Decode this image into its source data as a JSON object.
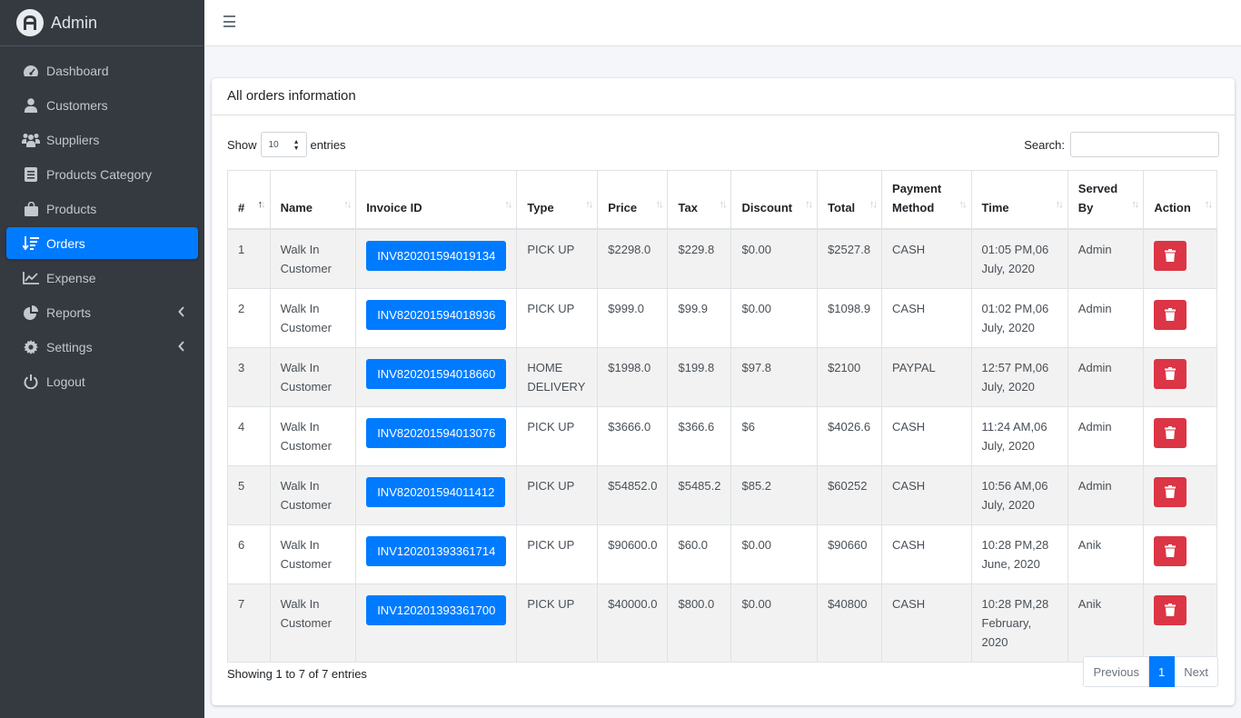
{
  "brand": {
    "name": "Admin",
    "logo_icon": "app-logo-icon"
  },
  "sidebar": {
    "items": [
      {
        "label": "Dashboard",
        "icon": "tachometer-icon"
      },
      {
        "label": "Customers",
        "icon": "user-icon"
      },
      {
        "label": "Suppliers",
        "icon": "people-icon"
      },
      {
        "label": "Products Category",
        "icon": "list-box-icon"
      },
      {
        "label": "Products",
        "icon": "shopping-bag-icon"
      },
      {
        "label": "Orders",
        "icon": "sort-list-icon",
        "active": true
      },
      {
        "label": "Expense",
        "icon": "line-chart-icon"
      },
      {
        "label": "Reports",
        "icon": "pie-chart-icon",
        "has_submenu": true
      },
      {
        "label": "Settings",
        "icon": "gear-icon",
        "has_submenu": true
      },
      {
        "label": "Logout",
        "icon": "power-icon"
      }
    ]
  },
  "card": {
    "title": "All orders information"
  },
  "controls": {
    "show_label": "Show",
    "entries_value": "10",
    "entries_label": "entries",
    "search_label": "Search:",
    "search_value": ""
  },
  "table": {
    "headers": [
      "#",
      "Name",
      "Invoice ID",
      "Type",
      "Price",
      "Tax",
      "Discount",
      "Total",
      "Payment Method",
      "Time",
      "Served By",
      "Action"
    ],
    "rows": [
      {
        "num": "1",
        "name": "Walk In Customer",
        "invoice": "INV820201594019134",
        "type": "PICK UP",
        "price": "$2298.0",
        "tax": "$229.8",
        "discount": "$0.00",
        "total": "$2527.8",
        "payment": "CASH",
        "time": "01:05 PM,06 July, 2020",
        "served": "Admin"
      },
      {
        "num": "2",
        "name": "Walk In Customer",
        "invoice": "INV820201594018936",
        "type": "PICK UP",
        "price": "$999.0",
        "tax": "$99.9",
        "discount": "$0.00",
        "total": "$1098.9",
        "payment": "CASH",
        "time": "01:02 PM,06 July, 2020",
        "served": "Admin"
      },
      {
        "num": "3",
        "name": "Walk In Customer",
        "invoice": "INV820201594018660",
        "type": "HOME DELIVERY",
        "price": "$1998.0",
        "tax": "$199.8",
        "discount": "$97.8",
        "total": "$2100",
        "payment": "PAYPAL",
        "time": "12:57 PM,06 July, 2020",
        "served": "Admin"
      },
      {
        "num": "4",
        "name": "Walk In Customer",
        "invoice": "INV820201594013076",
        "type": "PICK UP",
        "price": "$3666.0",
        "tax": "$366.6",
        "discount": "$6",
        "total": "$4026.6",
        "payment": "CASH",
        "time": "11:24 AM,06 July, 2020",
        "served": "Admin"
      },
      {
        "num": "5",
        "name": "Walk In Customer",
        "invoice": "INV820201594011412",
        "type": "PICK UP",
        "price": "$54852.0",
        "tax": "$5485.2",
        "discount": "$85.2",
        "total": "$60252",
        "payment": "CASH",
        "time": "10:56 AM,06 July, 2020",
        "served": "Admin"
      },
      {
        "num": "6",
        "name": "Walk In Customer",
        "invoice": "INV120201393361714",
        "type": "PICK UP",
        "price": "$90600.0",
        "tax": "$60.0",
        "discount": "$0.00",
        "total": "$90660",
        "payment": "CASH",
        "time": "10:28 PM,28 June, 2020",
        "served": "Anik"
      },
      {
        "num": "7",
        "name": "Walk In Customer",
        "invoice": "INV120201393361700",
        "type": "PICK UP",
        "price": "$40000.0",
        "tax": "$800.0",
        "discount": "$0.00",
        "total": "$40800",
        "payment": "CASH",
        "time": "10:28 PM,28 February, 2020",
        "served": "Anik"
      }
    ]
  },
  "footer": {
    "info": "Showing 1 to 7 of 7 entries",
    "prev_label": "Previous",
    "page_label": "1",
    "next_label": "Next"
  },
  "colors": {
    "sidebar_bg": "#343a40",
    "accent": "#007bff",
    "danger": "#dc3545"
  }
}
